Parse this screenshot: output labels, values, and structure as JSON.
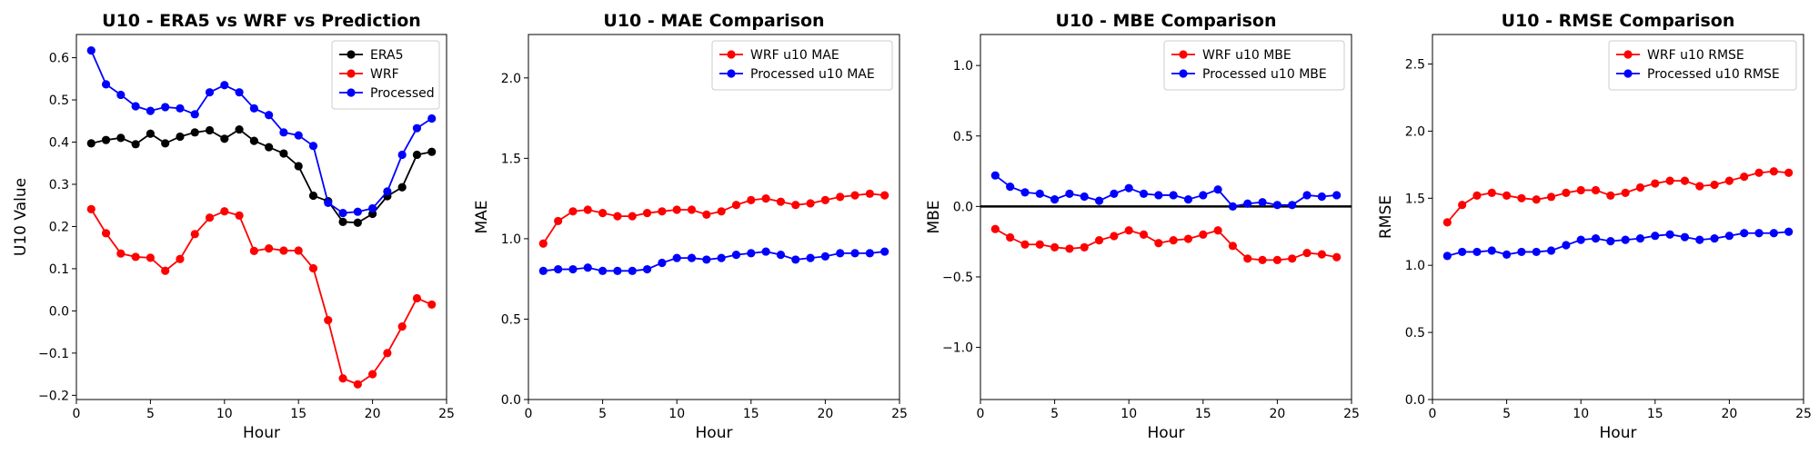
{
  "chart_data": [
    {
      "type": "line",
      "title": "U10 - ERA5 vs WRF vs Prediction",
      "xlabel": "Hour",
      "ylabel": "U10 Value",
      "xlim": [
        0,
        25
      ],
      "ylim": [
        -0.21,
        0.655
      ],
      "xticks": [
        0,
        5,
        10,
        15,
        20,
        25
      ],
      "yticks": [
        -0.2,
        -0.1,
        0.0,
        0.1,
        0.2,
        0.3,
        0.4,
        0.5,
        0.6
      ],
      "ytick_labels": [
        "−0.2",
        "−0.1",
        "0.0",
        "0.1",
        "0.2",
        "0.3",
        "0.4",
        "0.5",
        "0.6"
      ],
      "legend_position": "upper right",
      "x": [
        1,
        2,
        3,
        4,
        5,
        6,
        7,
        8,
        9,
        10,
        11,
        12,
        13,
        14,
        15,
        16,
        17,
        18,
        19,
        20,
        21,
        22,
        23,
        24
      ],
      "series": [
        {
          "name": "ERA5",
          "color": "#000000",
          "values": [
            0.397,
            0.405,
            0.41,
            0.395,
            0.42,
            0.397,
            0.413,
            0.423,
            0.428,
            0.408,
            0.43,
            0.403,
            0.388,
            0.373,
            0.343,
            0.273,
            0.26,
            0.211,
            0.209,
            0.23,
            0.272,
            0.293,
            0.37,
            0.377
          ]
        },
        {
          "name": "WRF",
          "color": "#ff0000",
          "values": [
            0.241,
            0.184,
            0.136,
            0.128,
            0.126,
            0.095,
            0.123,
            0.182,
            0.221,
            0.236,
            0.226,
            0.142,
            0.148,
            0.143,
            0.143,
            0.101,
            -0.022,
            -0.16,
            -0.174,
            -0.15,
            -0.1,
            -0.037,
            0.03,
            0.015
          ]
        },
        {
          "name": "Processed",
          "color": "#0000ff",
          "values": [
            0.617,
            0.537,
            0.512,
            0.485,
            0.474,
            0.483,
            0.48,
            0.466,
            0.518,
            0.535,
            0.518,
            0.48,
            0.464,
            0.423,
            0.416,
            0.391,
            0.256,
            0.232,
            0.235,
            0.243,
            0.283,
            0.37,
            0.433,
            0.456
          ]
        }
      ]
    },
    {
      "type": "line",
      "title": "U10 - MAE Comparison",
      "xlabel": "Hour",
      "ylabel": "MAE",
      "xlim": [
        0,
        25
      ],
      "ylim": [
        0,
        2.27
      ],
      "xticks": [
        0,
        5,
        10,
        15,
        20,
        25
      ],
      "yticks": [
        0.0,
        0.5,
        1.0,
        1.5,
        2.0
      ],
      "ytick_labels": [
        "0.0",
        "0.5",
        "1.0",
        "1.5",
        "2.0"
      ],
      "legend_position": "upper right",
      "x": [
        1,
        2,
        3,
        4,
        5,
        6,
        7,
        8,
        9,
        10,
        11,
        12,
        13,
        14,
        15,
        16,
        17,
        18,
        19,
        20,
        21,
        22,
        23,
        24
      ],
      "series": [
        {
          "name": "WRF u10 MAE",
          "color": "#ff0000",
          "values": [
            0.97,
            1.11,
            1.17,
            1.18,
            1.16,
            1.14,
            1.14,
            1.16,
            1.17,
            1.18,
            1.18,
            1.15,
            1.17,
            1.21,
            1.24,
            1.25,
            1.23,
            1.21,
            1.22,
            1.24,
            1.26,
            1.27,
            1.28,
            1.27
          ]
        },
        {
          "name": "Processed u10 MAE",
          "color": "#0000ff",
          "values": [
            0.8,
            0.81,
            0.81,
            0.82,
            0.8,
            0.8,
            0.8,
            0.81,
            0.85,
            0.88,
            0.88,
            0.87,
            0.88,
            0.9,
            0.91,
            0.92,
            0.9,
            0.87,
            0.88,
            0.89,
            0.91,
            0.91,
            0.91,
            0.92
          ]
        }
      ]
    },
    {
      "type": "line",
      "title": "U10 - MBE Comparison",
      "xlabel": "Hour",
      "ylabel": "MBE",
      "xlim": [
        0,
        25
      ],
      "ylim": [
        -1.37,
        1.22
      ],
      "xticks": [
        0,
        5,
        10,
        15,
        20,
        25
      ],
      "yticks": [
        -1.0,
        -0.5,
        0.0,
        0.5,
        1.0
      ],
      "ytick_labels": [
        "−1.0",
        "−0.5",
        "0.0",
        "0.5",
        "1.0"
      ],
      "legend_position": "upper right",
      "zero_line": true,
      "x": [
        1,
        2,
        3,
        4,
        5,
        6,
        7,
        8,
        9,
        10,
        11,
        12,
        13,
        14,
        15,
        16,
        17,
        18,
        19,
        20,
        21,
        22,
        23,
        24
      ],
      "series": [
        {
          "name": "WRF u10 MBE",
          "color": "#ff0000",
          "values": [
            -0.16,
            -0.22,
            -0.27,
            -0.27,
            -0.29,
            -0.3,
            -0.29,
            -0.24,
            -0.21,
            -0.17,
            -0.2,
            -0.26,
            -0.24,
            -0.23,
            -0.2,
            -0.17,
            -0.28,
            -0.37,
            -0.38,
            -0.38,
            -0.37,
            -0.33,
            -0.34,
            -0.36
          ]
        },
        {
          "name": "Processed u10 MBE",
          "color": "#0000ff",
          "values": [
            0.22,
            0.14,
            0.1,
            0.09,
            0.05,
            0.09,
            0.07,
            0.04,
            0.09,
            0.13,
            0.09,
            0.08,
            0.08,
            0.05,
            0.08,
            0.12,
            0.0,
            0.02,
            0.03,
            0.01,
            0.01,
            0.08,
            0.07,
            0.08
          ]
        }
      ]
    },
    {
      "type": "line",
      "title": "U10 - RMSE Comparison",
      "xlabel": "Hour",
      "ylabel": "RMSE",
      "xlim": [
        0,
        25
      ],
      "ylim": [
        0,
        2.72
      ],
      "xticks": [
        0,
        5,
        10,
        15,
        20,
        25
      ],
      "yticks": [
        0.0,
        0.5,
        1.0,
        1.5,
        2.0,
        2.5
      ],
      "ytick_labels": [
        "0.0",
        "0.5",
        "1.0",
        "1.5",
        "2.0",
        "2.5"
      ],
      "legend_position": "upper right",
      "x": [
        1,
        2,
        3,
        4,
        5,
        6,
        7,
        8,
        9,
        10,
        11,
        12,
        13,
        14,
        15,
        16,
        17,
        18,
        19,
        20,
        21,
        22,
        23,
        24
      ],
      "series": [
        {
          "name": "WRF u10 RMSE",
          "color": "#ff0000",
          "values": [
            1.32,
            1.45,
            1.52,
            1.54,
            1.52,
            1.5,
            1.49,
            1.51,
            1.54,
            1.56,
            1.56,
            1.52,
            1.54,
            1.58,
            1.61,
            1.63,
            1.63,
            1.59,
            1.6,
            1.63,
            1.66,
            1.69,
            1.7,
            1.69
          ]
        },
        {
          "name": "Processed u10 RMSE",
          "color": "#0000ff",
          "values": [
            1.07,
            1.1,
            1.1,
            1.11,
            1.08,
            1.1,
            1.1,
            1.11,
            1.15,
            1.19,
            1.2,
            1.18,
            1.19,
            1.2,
            1.22,
            1.23,
            1.21,
            1.19,
            1.2,
            1.22,
            1.24,
            1.24,
            1.24,
            1.25
          ]
        }
      ]
    }
  ]
}
